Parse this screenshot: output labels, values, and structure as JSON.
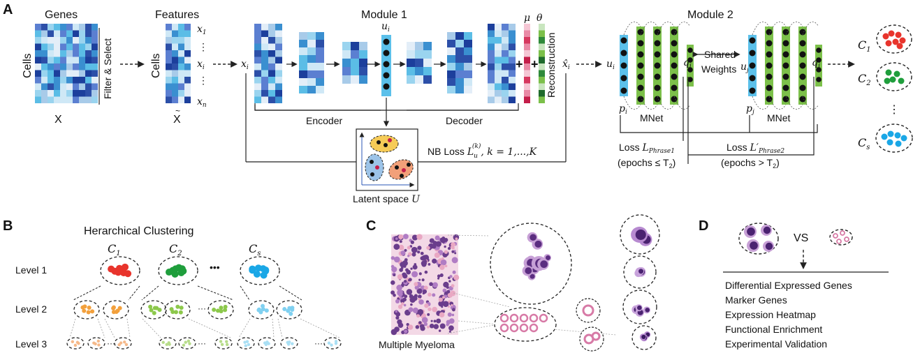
{
  "panels": {
    "a": "A",
    "b": "B",
    "c": "C",
    "d": "D"
  },
  "colors": {
    "red": "#e8342c",
    "green": "#1f9e3c",
    "blue": "#1aa7e6",
    "orange": "#f2a03c",
    "lightgreen": "#8cc84b",
    "lightblue": "#7fd0f0",
    "mnet": "#7cc04a",
    "nodeBlue": "#5bc0ea",
    "heatA": "#1c3f9c",
    "heatB": "#7fc6e6"
  },
  "panelA": {
    "genes": "Genes",
    "cells": "Cells",
    "x": "X",
    "filter": "Filter & Select",
    "features": "Features",
    "cells2": "Cells",
    "xtilde": "X",
    "x1": "x",
    "x1sub": "1",
    "xi": "x",
    "xisub": "i",
    "xn": "x",
    "xnsub": "n",
    "dots": "⋮",
    "xi_in": "x",
    "xi_in_sub": "i",
    "module1": "Module 1",
    "ui": "u",
    "uisub": "i",
    "mu": "μ",
    "theta": "θ",
    "plus": "+",
    "reconstruction": "Reconstruction",
    "xhat": "x̂",
    "xhatsub": "i",
    "encoder": "Encoder",
    "decoder": "Decoder",
    "nbloss": "NB Loss",
    "lu": "L",
    "lusub": "u",
    "lusup": "(k)",
    "krange": ", k = 1,...,K",
    "latent": "Latent space",
    "latentU": "U",
    "module2": "Module 2",
    "ui2": "u",
    "ui2sub": "i",
    "qi": "q",
    "qisub": "i",
    "pi": "p",
    "pisub": "i",
    "uj": "u",
    "ujsub": "j",
    "qj": "q",
    "qjsub": "j",
    "pj": "p",
    "pjsub": "j",
    "mnet1": "MNet",
    "mnet2": "MNet",
    "shared": "Shared",
    "weights": "Weights",
    "loss1": "Loss",
    "loss1L": "L",
    "loss1sub": "Phrase1",
    "epochs1": "(epochs ≤ T",
    "epochs1sub": "2",
    "epochs1end": ")",
    "loss2": "Loss",
    "loss2L": "L′",
    "loss2sub": "Phrase2",
    "epochs2": "(epochs > T",
    "epochs2sub": "2",
    "epochs2end": ")",
    "c1": "C",
    "c1sub": "1",
    "c2": "C",
    "c2sub": "2",
    "cs": "C",
    "cssub": "s",
    "vdots": "⋮"
  },
  "panelB": {
    "title": "Herarchical Clustering",
    "c1": "C",
    "c1sub": "1",
    "c2": "C",
    "c2sub": "2",
    "cs": "C",
    "cssub": "s",
    "dots": "•••",
    "levels": [
      "Level 1",
      "Level 2",
      "Level 3"
    ],
    "midDots": "···"
  },
  "panelC": {
    "caption": "Multiple Myeloma"
  },
  "panelD": {
    "vs": "VS",
    "items": [
      "Differential Expressed Genes",
      "Marker Genes",
      "Expression Heatmap",
      "Functional Enrichment",
      "Experimental Validation"
    ]
  }
}
